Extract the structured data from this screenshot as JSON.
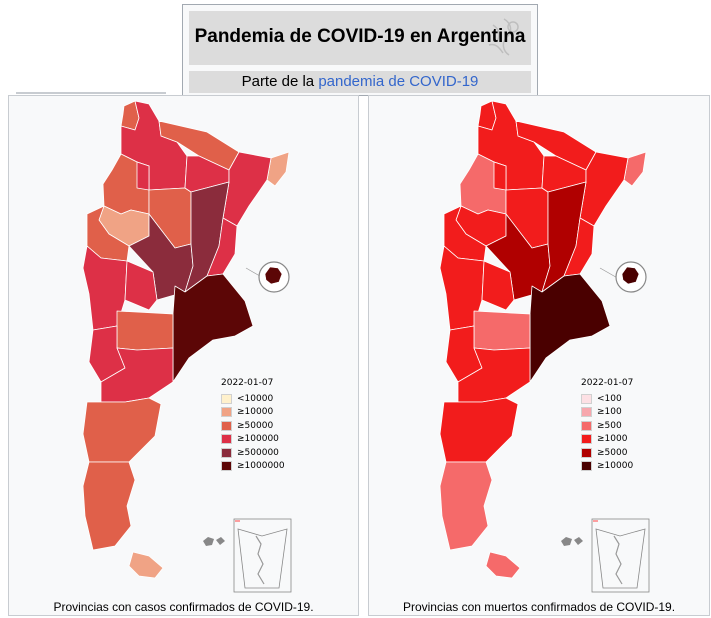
{
  "header": {
    "title": "Pandemia de COVID-19 en Argentina",
    "subtitle_prefix": "Parte de la",
    "subtitle_link": "pandemia de COVID-19"
  },
  "maps": [
    {
      "caption": "Provincias con casos confirmados de COVID-19.",
      "legend": {
        "date": "2022-01-07",
        "items": [
          {
            "label": "<10000",
            "color": "#fff1cc"
          },
          {
            "label": "≥10000",
            "color": "#f0a385"
          },
          {
            "label": "≥50000",
            "color": "#e0604a"
          },
          {
            "label": "≥100000",
            "color": "#dd3047"
          },
          {
            "label": "≥500000",
            "color": "#8b2c3c"
          },
          {
            "label": "≥1000000",
            "color": "#5c0606"
          }
        ]
      },
      "provinces": [
        {
          "name": "Jujuy",
          "class": "≥50000"
        },
        {
          "name": "Salta",
          "class": "≥100000"
        },
        {
          "name": "Formosa",
          "class": "≥50000"
        },
        {
          "name": "Misiones",
          "class": "≥10000"
        },
        {
          "name": "Catamarca",
          "class": "≥50000"
        },
        {
          "name": "Tucumán",
          "class": "≥100000"
        },
        {
          "name": "Santiago del Estero",
          "class": "≥50000"
        },
        {
          "name": "Chaco",
          "class": "≥100000"
        },
        {
          "name": "Corrientes",
          "class": "≥100000"
        },
        {
          "name": "La Rioja",
          "class": "≥10000"
        },
        {
          "name": "San Juan",
          "class": "≥50000"
        },
        {
          "name": "Córdoba",
          "class": "≥500000"
        },
        {
          "name": "Santa Fe",
          "class": "≥500000"
        },
        {
          "name": "Entre Ríos",
          "class": "≥100000"
        },
        {
          "name": "Mendoza",
          "class": "≥100000"
        },
        {
          "name": "San Luis",
          "class": "≥100000"
        },
        {
          "name": "Buenos Aires",
          "class": "≥1000000"
        },
        {
          "name": "Ciudad de Buenos Aires",
          "class": "≥1000000"
        },
        {
          "name": "La Pampa",
          "class": "≥50000"
        },
        {
          "name": "Neuquén",
          "class": "≥100000"
        },
        {
          "name": "Río Negro",
          "class": "≥100000"
        },
        {
          "name": "Chubut",
          "class": "≥50000"
        },
        {
          "name": "Santa Cruz",
          "class": "≥50000"
        },
        {
          "name": "Tierra del Fuego",
          "class": "≥10000"
        }
      ]
    },
    {
      "caption": "Provincias con muertos confirmados de COVID-19.",
      "legend": {
        "date": "2022-01-07",
        "items": [
          {
            "label": "<100",
            "color": "#fde0e4"
          },
          {
            "label": "≥100",
            "color": "#f7a7ad"
          },
          {
            "label": "≥500",
            "color": "#f56a6a"
          },
          {
            "label": "≥1000",
            "color": "#f21c1c"
          },
          {
            "label": "≥5000",
            "color": "#b00000"
          },
          {
            "label": "≥10000",
            "color": "#4a0000"
          }
        ]
      },
      "provinces": [
        {
          "name": "Jujuy",
          "class": "≥1000"
        },
        {
          "name": "Salta",
          "class": "≥1000"
        },
        {
          "name": "Formosa",
          "class": "≥1000"
        },
        {
          "name": "Misiones",
          "class": "≥500"
        },
        {
          "name": "Catamarca",
          "class": "≥500"
        },
        {
          "name": "Tucumán",
          "class": "≥1000"
        },
        {
          "name": "Santiago del Estero",
          "class": "≥1000"
        },
        {
          "name": "Chaco",
          "class": "≥1000"
        },
        {
          "name": "Corrientes",
          "class": "≥1000"
        },
        {
          "name": "La Rioja",
          "class": "≥1000"
        },
        {
          "name": "San Juan",
          "class": "≥1000"
        },
        {
          "name": "Córdoba",
          "class": "≥5000"
        },
        {
          "name": "Santa Fe",
          "class": "≥5000"
        },
        {
          "name": "Entre Ríos",
          "class": "≥1000"
        },
        {
          "name": "Mendoza",
          "class": "≥1000"
        },
        {
          "name": "San Luis",
          "class": "≥1000"
        },
        {
          "name": "Buenos Aires",
          "class": "≥10000"
        },
        {
          "name": "Ciudad de Buenos Aires",
          "class": "≥10000"
        },
        {
          "name": "La Pampa",
          "class": "≥500"
        },
        {
          "name": "Neuquén",
          "class": "≥1000"
        },
        {
          "name": "Río Negro",
          "class": "≥1000"
        },
        {
          "name": "Chubut",
          "class": "≥1000"
        },
        {
          "name": "Santa Cruz",
          "class": "≥500"
        },
        {
          "name": "Tierra del Fuego",
          "class": "≥500"
        }
      ]
    }
  ]
}
